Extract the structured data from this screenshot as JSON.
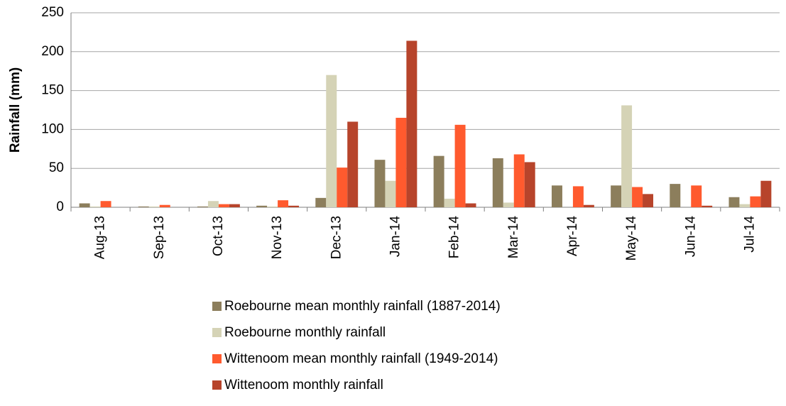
{
  "chart_data": {
    "type": "bar",
    "y_label": "Rainfall (mm)",
    "categories": [
      "Aug-13",
      "Sep-13",
      "Oct-13",
      "Nov-13",
      "Dec-13",
      "Jan-14",
      "Feb-14",
      "Mar-14",
      "Apr-14",
      "May-14",
      "Jun-14",
      "Jul-14"
    ],
    "series": [
      {
        "name": "Roebourne mean monthly rainfall (1887-2014)",
        "color": "#8c7e5c",
        "values": [
          5,
          1,
          1,
          2,
          12,
          61,
          66,
          63,
          28,
          28,
          30,
          13
        ]
      },
      {
        "name": "Roebourne monthly rainfall",
        "color": "#d5d3b6",
        "values": [
          1,
          1,
          8,
          1,
          170,
          34,
          11,
          6,
          0,
          131,
          0,
          4
        ]
      },
      {
        "name": "Wittenoom mean monthly rainfall (1949-2014)",
        "color": "#ff5a2e",
        "values": [
          8,
          3,
          4,
          9,
          51,
          115,
          106,
          68,
          27,
          26,
          28,
          14
        ]
      },
      {
        "name": "Wittenoom monthly rainfall",
        "color": "#b7442b",
        "values": [
          0,
          0,
          4,
          2,
          110,
          214,
          5,
          58,
          3,
          17,
          2,
          34
        ]
      }
    ],
    "ylim": [
      0,
      250
    ],
    "yticks": [
      0,
      50,
      100,
      150,
      200,
      250
    ],
    "grid": true,
    "legend": "bottom"
  }
}
